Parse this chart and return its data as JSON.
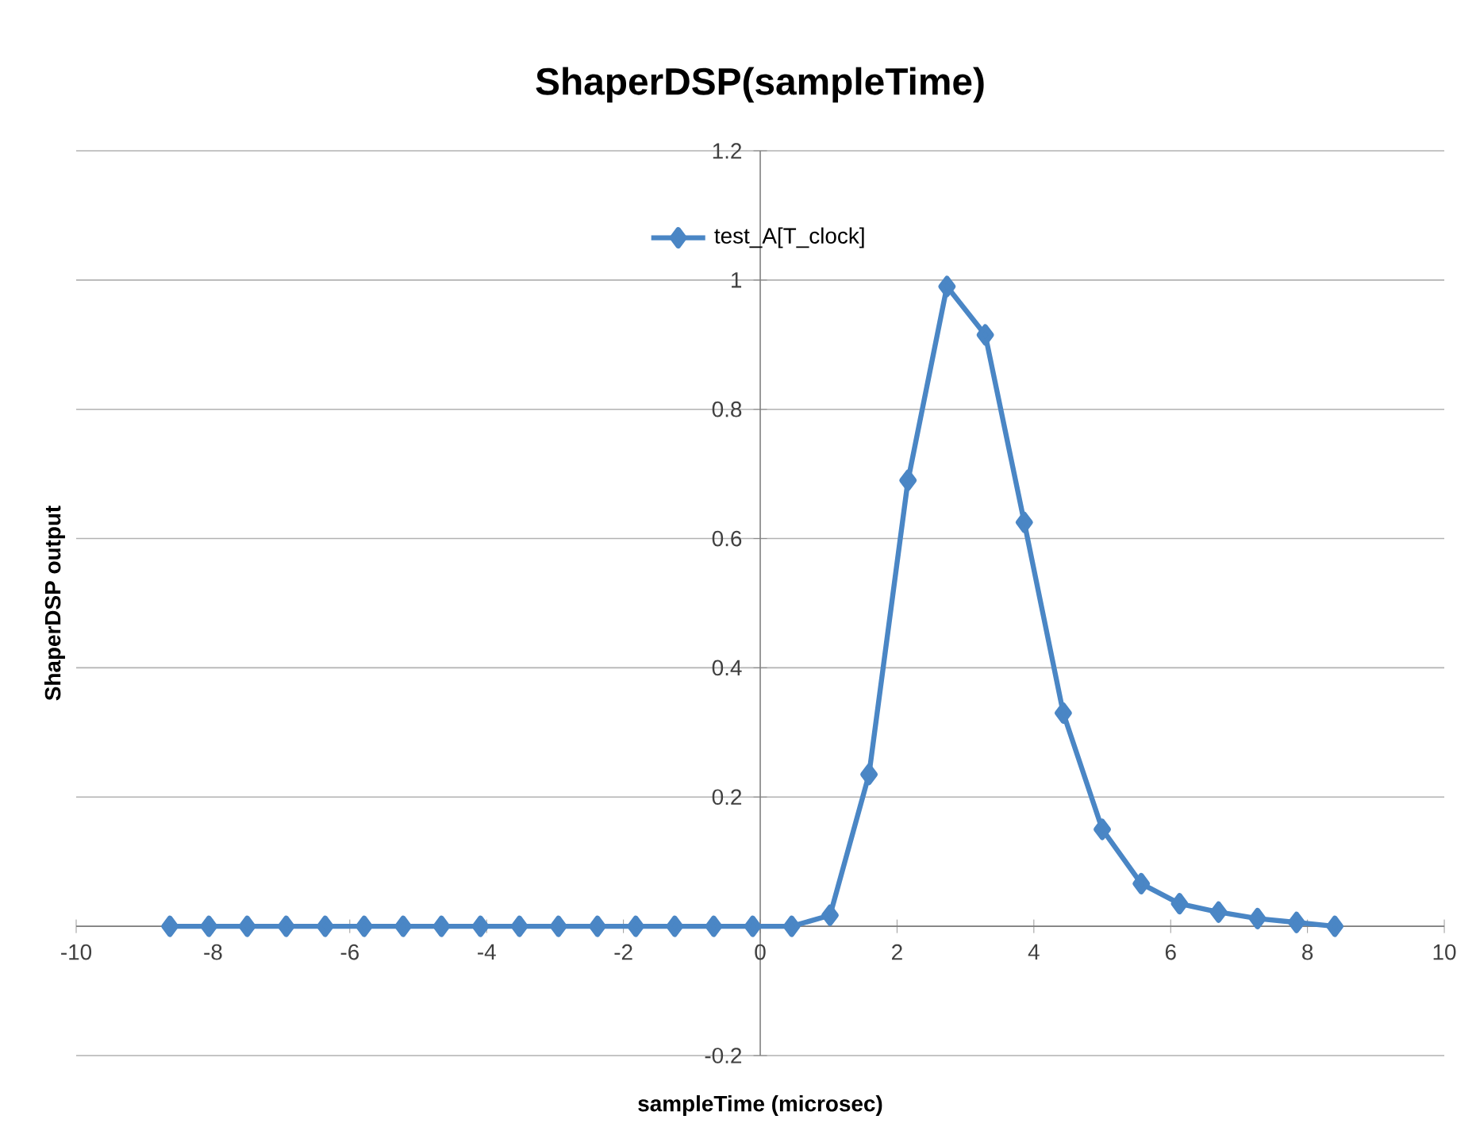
{
  "chart_data": {
    "type": "line",
    "title": "ShaperDSP(sampleTime)",
    "xlabel": "sampleTime (microsec)",
    "ylabel": "ShaperDSP output",
    "series": [
      {
        "name": "test_A[T_clock]",
        "color": "#4a86c5",
        "x": [
          -8.63,
          -8.06,
          -7.5,
          -6.93,
          -6.36,
          -5.79,
          -5.22,
          -4.66,
          -4.09,
          -3.52,
          -2.95,
          -2.38,
          -1.82,
          -1.25,
          -0.68,
          -0.11,
          0.46,
          1.02,
          1.59,
          2.16,
          2.73,
          3.29,
          3.86,
          4.43,
          5.0,
          5.57,
          6.13,
          6.7,
          7.27,
          7.84,
          8.4
        ],
        "values": [
          0,
          0,
          0,
          0,
          0,
          0,
          0,
          0,
          0,
          0,
          0,
          0,
          0,
          0,
          0,
          0,
          0,
          0.017,
          0.235,
          0.69,
          0.99,
          0.915,
          0.625,
          0.33,
          0.15,
          0.066,
          0.035,
          0.022,
          0.012,
          0.006,
          0
        ]
      }
    ],
    "xlim": [
      -10,
      10
    ],
    "xticks": [
      -10,
      -8,
      -6,
      -4,
      -2,
      0,
      2,
      4,
      6,
      8,
      10
    ],
    "ylim": [
      -0.2,
      1.2
    ],
    "yticks": [
      -0.2,
      {
        "value": 0,
        "label": null
      },
      0.2,
      0.4,
      0.6,
      0.8,
      1,
      1.2
    ],
    "grid": "y",
    "legend": "top",
    "marker": "diamond",
    "line_style": "solid"
  }
}
